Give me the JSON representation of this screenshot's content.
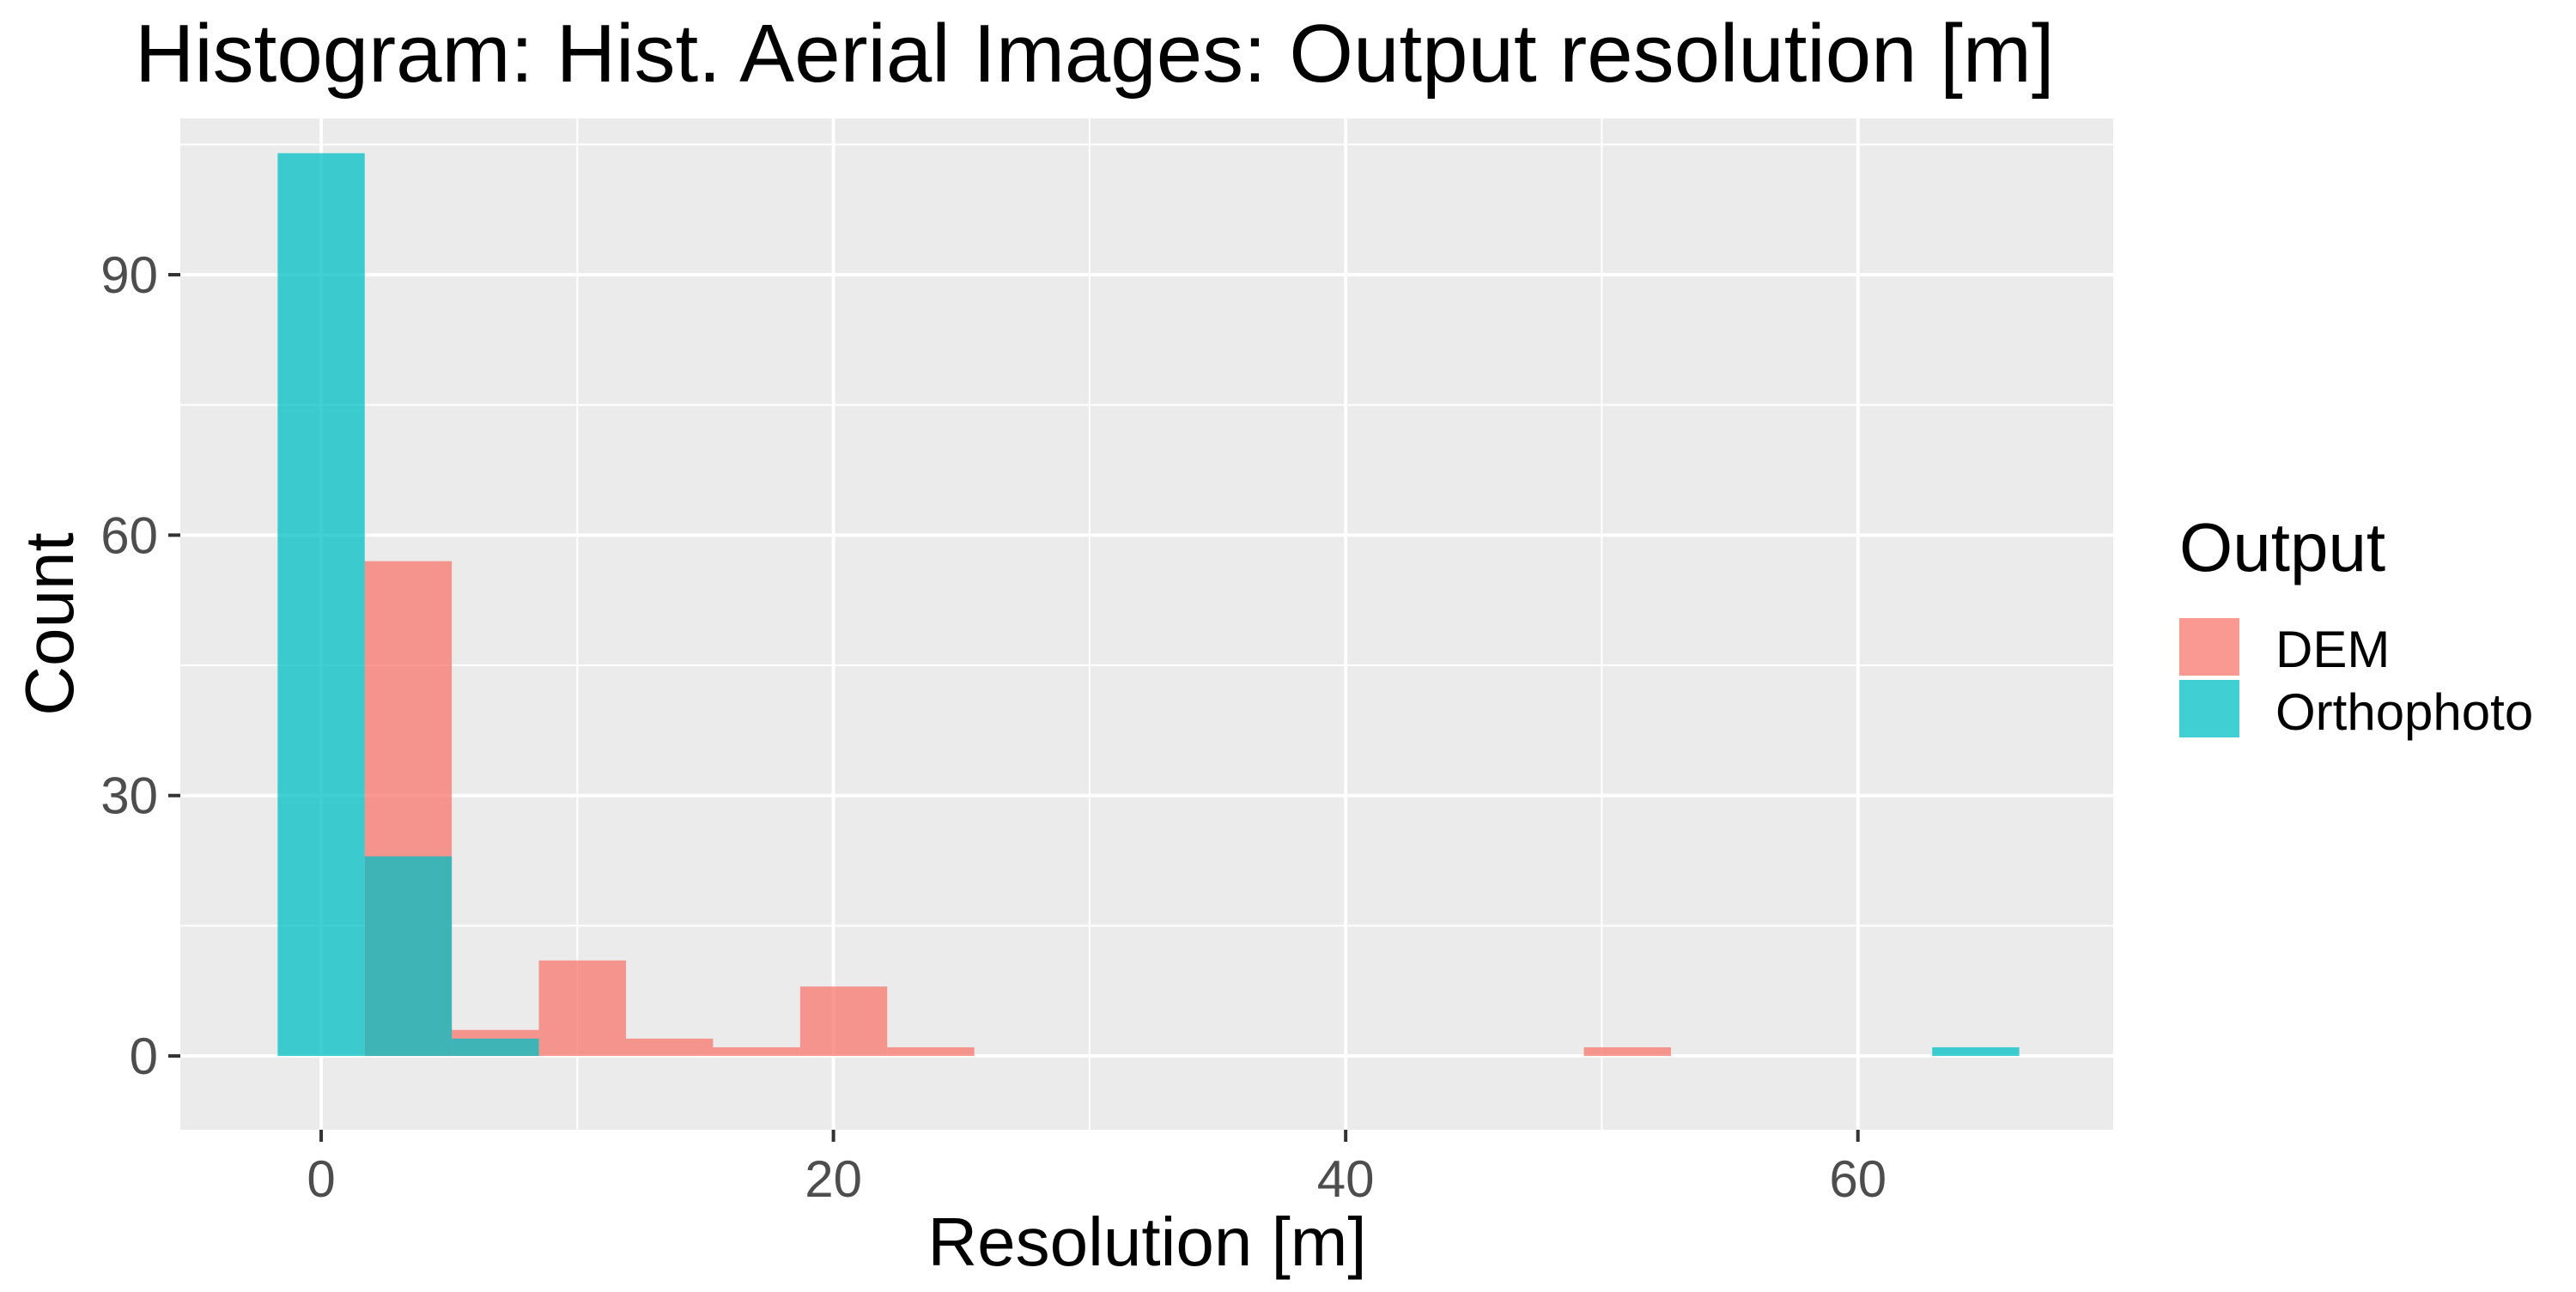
{
  "chart_data": {
    "type": "bar",
    "subtype": "histogram",
    "title": "Histogram: Hist. Aerial Images: Output resolution [m]",
    "xlabel": "Resolution [m]",
    "ylabel": "Count",
    "xlim": [
      -5.5,
      70
    ],
    "ylim": [
      -8.5,
      108
    ],
    "x_ticks": [
      0,
      20,
      40,
      60
    ],
    "x_tick_labels": [
      "0",
      "20",
      "40",
      "60"
    ],
    "y_ticks": [
      0,
      30,
      60,
      90
    ],
    "y_tick_labels": [
      "0",
      "30",
      "60",
      "90"
    ],
    "x_minor_gridlines": [
      10,
      30,
      50,
      70
    ],
    "y_minor_gridlines": [
      15,
      45,
      75,
      105
    ],
    "grid": true,
    "background_color": "#EBEBEB",
    "bin_width": 3.4,
    "bin_centers": [
      0,
      3.4,
      6.8,
      10.2,
      13.6,
      17.0,
      20.4,
      23.8,
      51.0,
      64.6
    ],
    "series": [
      {
        "name": "DEM",
        "color": "#F8766D",
        "values": [
          0,
          57,
          3,
          11,
          2,
          1,
          8,
          1,
          1,
          0
        ]
      },
      {
        "name": "Orthophoto",
        "color": "#00BFC4",
        "values": [
          104,
          23,
          2,
          0,
          0,
          0,
          0,
          0,
          0,
          1
        ]
      }
    ],
    "fill_opacity": 0.75,
    "legend": {
      "title": "Output",
      "position": "right",
      "entries": [
        "DEM",
        "Orthophoto"
      ]
    }
  }
}
